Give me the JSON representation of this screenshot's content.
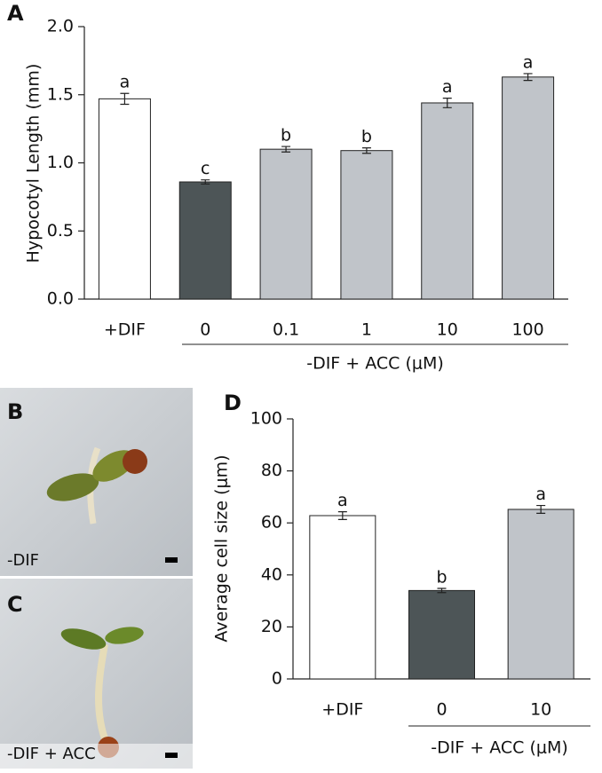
{
  "panels": [
    "A",
    "D"
  ],
  "photos": [
    {
      "label": "B",
      "caption": "-DIF"
    },
    {
      "label": "C",
      "caption": "-DIF + ACC"
    }
  ],
  "chart_data": [
    {
      "type": "bar",
      "y_label": "Hypocotyl Length (mm)",
      "categories": [
        "+DIF",
        "0",
        "0.1",
        "1",
        "10",
        "100"
      ],
      "values": [
        1.47,
        0.86,
        1.1,
        1.09,
        1.44,
        1.63
      ],
      "errors": [
        0.04,
        0.015,
        0.02,
        0.02,
        0.035,
        0.025
      ],
      "annotations": [
        "a",
        "c",
        "b",
        "b",
        "a",
        "a"
      ],
      "colors": [
        "#ffffff",
        "#4d5557",
        "#c0c4c9",
        "#c0c4c9",
        "#c0c4c9",
        "#c0c4c9"
      ],
      "group_label": "-DIF + ACC (μM)",
      "ylim": [
        0,
        2
      ],
      "yticks": [
        {
          "value": 0,
          "label": "0.0"
        },
        {
          "value": 0.5,
          "label": "0.5"
        },
        {
          "value": 1,
          "label": "1.0"
        },
        {
          "value": 1.5,
          "label": "1.5"
        },
        {
          "value": 2,
          "label": "2.0"
        }
      ]
    },
    {
      "type": "bar",
      "y_label": "Average cell size (μm)",
      "categories": [
        "+DIF",
        "0",
        "10"
      ],
      "values": [
        62.8,
        34.0,
        65.2
      ],
      "errors": [
        1.5,
        0.8,
        1.5
      ],
      "annotations": [
        "a",
        "b",
        "a"
      ],
      "colors": [
        "#ffffff",
        "#4d5557",
        "#c0c4c9"
      ],
      "group_label": "-DIF + ACC (μM)",
      "ylim": [
        0,
        100
      ],
      "yticks": [
        0,
        20,
        40,
        60,
        80,
        100
      ]
    }
  ]
}
